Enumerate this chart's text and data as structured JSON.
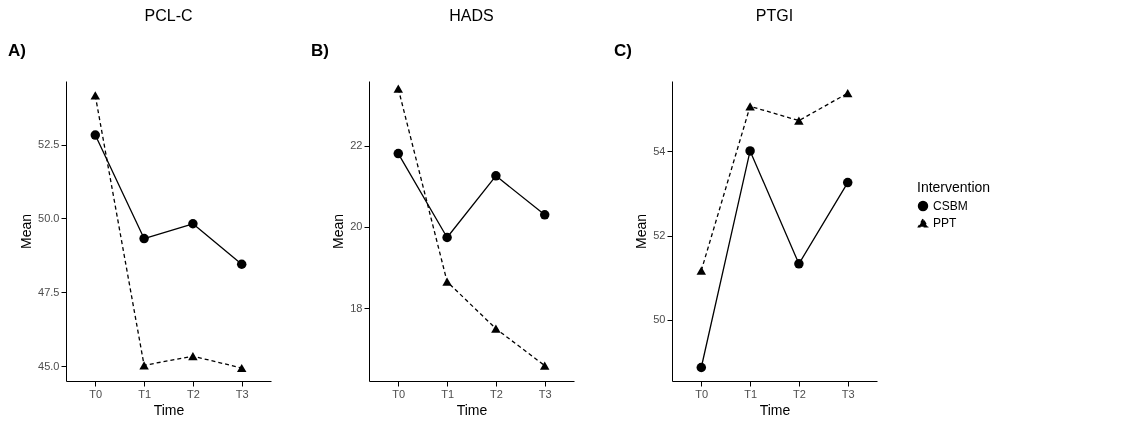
{
  "chart_data": [
    {
      "type": "line",
      "title": "PCL-C",
      "annotations": [
        "A)"
      ],
      "xlabel": "Time",
      "ylabel": "Mean",
      "categories": [
        "T0",
        "T1",
        "T2",
        "T3"
      ],
      "ylim": [
        44.5,
        54.65
      ],
      "yticks": [
        {
          "value": 45,
          "label": "45.0"
        },
        {
          "value": 47.5,
          "label": "47.5"
        },
        {
          "value": 50,
          "label": "50.0"
        },
        {
          "value": 52.5,
          "label": "52.5"
        }
      ],
      "grid": false,
      "legend": false,
      "series": [
        {
          "color": "#000000",
          "marker": "circle",
          "line_style": "solid",
          "values": [
            52.82,
            49.32,
            49.82,
            48.45
          ]
        },
        {
          "color": "#000000",
          "marker": "triangle",
          "line_style": "dashed",
          "values": [
            54.16,
            45.03,
            45.34,
            44.94
          ]
        }
      ]
    },
    {
      "type": "line",
      "title": "HADS",
      "annotations": [
        "B)"
      ],
      "xlabel": "Time",
      "ylabel": "Mean",
      "categories": [
        "T0",
        "T1",
        "T2",
        "T3"
      ],
      "ylim": [
        16.2,
        23.6
      ],
      "yticks": [
        18,
        20,
        22
      ],
      "grid": false,
      "legend": false,
      "series": [
        {
          "color": "#000000",
          "marker": "circle",
          "line_style": "solid",
          "values": [
            21.81,
            19.74,
            21.26,
            20.3
          ]
        },
        {
          "color": "#000000",
          "marker": "triangle",
          "line_style": "dashed",
          "values": [
            23.41,
            18.65,
            17.49,
            16.58
          ]
        }
      ]
    },
    {
      "type": "line",
      "title": "PTGI",
      "annotations": [
        "C)"
      ],
      "xlabel": "Time",
      "ylabel": "Mean",
      "legend_title": "Intervention",
      "categories": [
        "T0",
        "T1",
        "T2",
        "T3"
      ],
      "ylim": [
        48.55,
        55.67
      ],
      "yticks": [
        50,
        52,
        54
      ],
      "grid": false,
      "legend": "right",
      "series": [
        {
          "name": "CSBM",
          "color": "#000000",
          "marker": "circle",
          "line_style": "solid",
          "values": [
            48.87,
            54.01,
            51.33,
            53.26
          ]
        },
        {
          "name": "PPT",
          "color": "#000000",
          "marker": "triangle",
          "line_style": "dashed",
          "values": [
            51.17,
            55.07,
            54.73,
            55.38
          ]
        }
      ]
    }
  ]
}
